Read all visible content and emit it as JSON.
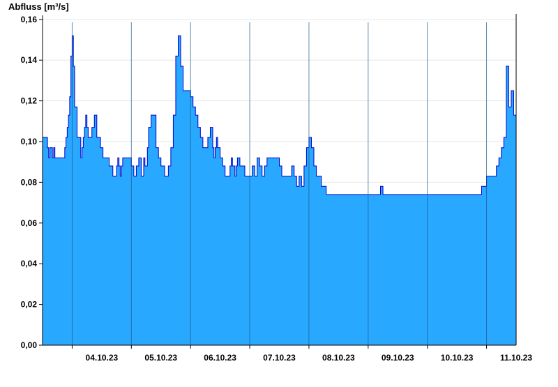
{
  "chart_data": {
    "type": "area",
    "ylabel": "Abfluss [m³/s]",
    "xlabel": "",
    "title": "",
    "ylim": [
      0,
      0.162
    ],
    "y_ticks": [
      {
        "value": 0.0,
        "label": "0,00"
      },
      {
        "value": 0.02,
        "label": "0,02"
      },
      {
        "value": 0.04,
        "label": "0,04"
      },
      {
        "value": 0.06,
        "label": "0,06"
      },
      {
        "value": 0.08,
        "label": "0,08"
      },
      {
        "value": 0.1,
        "label": "0,10"
      },
      {
        "value": 0.12,
        "label": "0,12"
      },
      {
        "value": 0.14,
        "label": "0,14"
      },
      {
        "value": 0.16,
        "label": "0,16"
      }
    ],
    "x_domain": [
      "2023-10-03T12:00",
      "2023-10-11T12:00"
    ],
    "x_tick_labels": [
      {
        "date": "2023-10-04",
        "label": "04.10.23"
      },
      {
        "date": "2023-10-05",
        "label": "05.10.23"
      },
      {
        "date": "2023-10-06",
        "label": "06.10.23"
      },
      {
        "date": "2023-10-07",
        "label": "07.10.23"
      },
      {
        "date": "2023-10-08",
        "label": "08.10.23"
      },
      {
        "date": "2023-10-09",
        "label": "09.10.23"
      },
      {
        "date": "2023-10-10",
        "label": "10.10.23"
      },
      {
        "date": "2023-10-11",
        "label": "11.10.23"
      }
    ],
    "day_separators": [
      "2023-10-04T00:00",
      "2023-10-05T00:00",
      "2023-10-06T00:00",
      "2023-10-07T00:00",
      "2023-10-08T00:00",
      "2023-10-09T00:00",
      "2023-10-10T00:00",
      "2023-10-11T00:00"
    ],
    "grid": {
      "horizontal": true,
      "vertical": false
    },
    "colors": {
      "fill": "#29a8ff",
      "line": "#0000cc",
      "grid": "#e6e6e6",
      "separator": "#1a5a8a"
    },
    "series": [
      {
        "step": true,
        "x": [
          "2023-10-03T12:00",
          "2023-10-03T13:30",
          "2023-10-03T14:00",
          "2023-10-03T14:30",
          "2023-10-03T15:00",
          "2023-10-03T16:00",
          "2023-10-03T16:30",
          "2023-10-03T17:00",
          "2023-10-03T20:00",
          "2023-10-03T21:00",
          "2023-10-03T21:30",
          "2023-10-03T22:00",
          "2023-10-03T22:30",
          "2023-10-03T23:00",
          "2023-10-03T23:30",
          "2023-10-04T00:00",
          "2023-10-04T00:30",
          "2023-10-04T01:00",
          "2023-10-04T02:00",
          "2023-10-04T03:30",
          "2023-10-04T04:00",
          "2023-10-04T04:30",
          "2023-10-04T05:00",
          "2023-10-04T05:30",
          "2023-10-04T06:00",
          "2023-10-04T06:30",
          "2023-10-04T07:00",
          "2023-10-04T08:00",
          "2023-10-04T09:00",
          "2023-10-04T10:00",
          "2023-10-04T11:00",
          "2023-10-04T11:30",
          "2023-10-04T12:30",
          "2023-10-04T13:30",
          "2023-10-04T15:00",
          "2023-10-04T16:30",
          "2023-10-04T18:00",
          "2023-10-04T18:30",
          "2023-10-04T19:00",
          "2023-10-04T19:30",
          "2023-10-04T20:00",
          "2023-10-04T20:30",
          "2023-10-04T21:00",
          "2023-10-05T00:00",
          "2023-10-05T01:00",
          "2023-10-05T02:00",
          "2023-10-05T03:00",
          "2023-10-05T04:00",
          "2023-10-05T05:00",
          "2023-10-05T05:30",
          "2023-10-05T06:30",
          "2023-10-05T07:00",
          "2023-10-05T08:00",
          "2023-10-05T10:00",
          "2023-10-05T11:00",
          "2023-10-05T12:00",
          "2023-10-05T13:30",
          "2023-10-05T15:00",
          "2023-10-05T16:00",
          "2023-10-05T17:00",
          "2023-10-05T18:00",
          "2023-10-05T19:00",
          "2023-10-05T20:00",
          "2023-10-05T21:00",
          "2023-10-05T22:00",
          "2023-10-05T23:00",
          "2023-10-06T00:00",
          "2023-10-06T01:00",
          "2023-10-06T02:00",
          "2023-10-06T03:00",
          "2023-10-06T04:00",
          "2023-10-06T05:00",
          "2023-10-06T06:00",
          "2023-10-06T07:00",
          "2023-10-06T08:00",
          "2023-10-06T09:00",
          "2023-10-06T09:30",
          "2023-10-06T10:00",
          "2023-10-06T10:30",
          "2023-10-06T11:00",
          "2023-10-06T12:00",
          "2023-10-06T13:00",
          "2023-10-06T14:00",
          "2023-10-06T15:00",
          "2023-10-06T16:00",
          "2023-10-06T16:30",
          "2023-10-06T17:00",
          "2023-10-06T18:00",
          "2023-10-06T18:30",
          "2023-10-06T19:00",
          "2023-10-06T20:00",
          "2023-10-06T22:00",
          "2023-10-07T00:00",
          "2023-10-07T01:00",
          "2023-10-07T02:00",
          "2023-10-07T03:00",
          "2023-10-07T04:00",
          "2023-10-07T05:00",
          "2023-10-07T06:00",
          "2023-10-07T07:00",
          "2023-10-07T08:00",
          "2023-10-07T09:00",
          "2023-10-07T10:00",
          "2023-10-07T11:00",
          "2023-10-07T12:00",
          "2023-10-07T13:00",
          "2023-10-07T14:00",
          "2023-10-07T15:00",
          "2023-10-07T16:00",
          "2023-10-07T17:00",
          "2023-10-07T18:00",
          "2023-10-07T19:00",
          "2023-10-07T20:00",
          "2023-10-07T21:00",
          "2023-10-07T22:00",
          "2023-10-07T23:00",
          "2023-10-08T00:00",
          "2023-10-08T01:00",
          "2023-10-08T02:00",
          "2023-10-08T03:00",
          "2023-10-08T04:00",
          "2023-10-08T05:00",
          "2023-10-08T06:00",
          "2023-10-08T07:00",
          "2023-10-08T08:00",
          "2023-10-08T09:00",
          "2023-10-08T10:00",
          "2023-10-08T11:00",
          "2023-10-08T12:00",
          "2023-10-08T13:00",
          "2023-10-08T14:00",
          "2023-10-08T15:00",
          "2023-10-08T16:00",
          "2023-10-08T18:00",
          "2023-10-08T20:00",
          "2023-10-08T22:00",
          "2023-10-09T00:00",
          "2023-10-09T02:00",
          "2023-10-09T03:00",
          "2023-10-09T04:00",
          "2023-10-09T05:00",
          "2023-10-09T06:00",
          "2023-10-09T07:00",
          "2023-10-09T08:00",
          "2023-10-09T09:00",
          "2023-10-09T10:00",
          "2023-10-09T11:00",
          "2023-10-09T12:00",
          "2023-10-09T13:00",
          "2023-10-09T14:00",
          "2023-10-09T15:00",
          "2023-10-09T16:00",
          "2023-10-09T17:00",
          "2023-10-09T18:00",
          "2023-10-09T20:00",
          "2023-10-09T22:00",
          "2023-10-10T00:00",
          "2023-10-10T04:00",
          "2023-10-10T08:00",
          "2023-10-10T09:00",
          "2023-10-10T10:00",
          "2023-10-10T13:00",
          "2023-10-10T14:00",
          "2023-10-10T15:00",
          "2023-10-10T18:00",
          "2023-10-10T22:00",
          "2023-10-11T00:00",
          "2023-10-11T04:00",
          "2023-10-11T05:00",
          "2023-10-11T06:00",
          "2023-10-11T07:00",
          "2023-10-11T08:00",
          "2023-10-11T09:00",
          "2023-10-11T10:00",
          "2023-10-11T11:00",
          "2023-10-11T12:00"
        ],
        "y": [
          0.102,
          0.102,
          0.097,
          0.092,
          0.097,
          0.092,
          0.097,
          0.092,
          0.092,
          0.097,
          0.102,
          0.107,
          0.113,
          0.122,
          0.142,
          0.152,
          0.137,
          0.117,
          0.102,
          0.092,
          0.097,
          0.102,
          0.107,
          0.113,
          0.107,
          0.102,
          0.102,
          0.107,
          0.113,
          0.102,
          0.102,
          0.097,
          0.092,
          0.092,
          0.088,
          0.083,
          0.088,
          0.092,
          0.088,
          0.083,
          0.088,
          0.092,
          0.092,
          0.088,
          0.083,
          0.088,
          0.092,
          0.083,
          0.092,
          0.088,
          0.097,
          0.107,
          0.113,
          0.097,
          0.092,
          0.088,
          0.083,
          0.088,
          0.097,
          0.113,
          0.142,
          0.152,
          0.137,
          0.125,
          0.125,
          0.125,
          0.122,
          0.117,
          0.113,
          0.107,
          0.102,
          0.097,
          0.097,
          0.102,
          0.107,
          0.097,
          0.092,
          0.097,
          0.102,
          0.097,
          0.092,
          0.088,
          0.083,
          0.083,
          0.088,
          0.092,
          0.088,
          0.083,
          0.088,
          0.092,
          0.088,
          0.083,
          0.083,
          0.088,
          0.083,
          0.092,
          0.088,
          0.083,
          0.088,
          0.092,
          0.092,
          0.092,
          0.092,
          0.092,
          0.088,
          0.083,
          0.083,
          0.083,
          0.083,
          0.088,
          0.083,
          0.078,
          0.083,
          0.078,
          0.088,
          0.097,
          0.102,
          0.097,
          0.088,
          0.083,
          0.083,
          0.078,
          0.078,
          0.074,
          0.074,
          0.074,
          0.074,
          0.074,
          0.074,
          0.074,
          0.074,
          0.074,
          0.074,
          0.074,
          0.074,
          0.074,
          0.074,
          0.074,
          0.074,
          0.074,
          0.078,
          0.074,
          0.074,
          0.074,
          0.074,
          0.074,
          0.074,
          0.074,
          0.074,
          0.074,
          0.074,
          0.074,
          0.074,
          0.074,
          0.074,
          0.074,
          0.074,
          0.074,
          0.074,
          0.074,
          0.074,
          0.074,
          0.074,
          0.074,
          0.074,
          0.078,
          0.083,
          0.088,
          0.092,
          0.097,
          0.102,
          0.137,
          0.117,
          0.125,
          0.113,
          0.113
        ]
      }
    ]
  }
}
